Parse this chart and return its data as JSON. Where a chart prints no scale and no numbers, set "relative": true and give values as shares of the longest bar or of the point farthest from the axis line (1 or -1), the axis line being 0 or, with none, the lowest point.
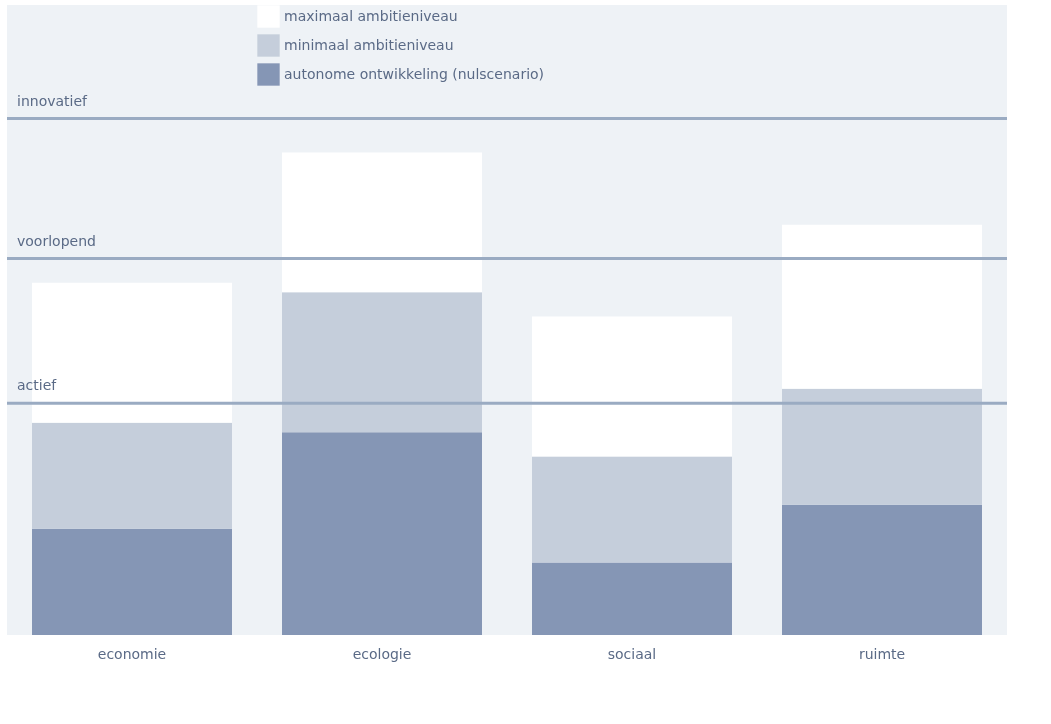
{
  "chart_data": {
    "type": "bar",
    "relative": true,
    "stacked": true,
    "legend": "top",
    "grid": false,
    "categories": [
      "economie",
      "ecologie",
      "sociaal",
      "ruimte"
    ],
    "series": [
      {
        "name": "autonome ontwikkeling (nulscenario)",
        "color": "#8596b5",
        "values": [
          0.22,
          0.42,
          0.15,
          0.27
        ]
      },
      {
        "name": "minimaal ambitieniveau",
        "color": "#c5cedb",
        "values": [
          0.22,
          0.29,
          0.22,
          0.24
        ]
      },
      {
        "name": "maximaal ambitieniveau",
        "color": "#ffffff",
        "values": [
          0.29,
          0.29,
          0.29,
          0.34
        ]
      }
    ],
    "ref_lines": [
      {
        "axis": "y",
        "value": 0.48,
        "label": "actief",
        "color": "#9aabc2"
      },
      {
        "axis": "y",
        "value": 0.78,
        "label": "voorlopend",
        "color": "#9aabc2"
      },
      {
        "axis": "y",
        "value": 1.07,
        "label": "innovatief",
        "color": "#9aabc2"
      }
    ]
  }
}
